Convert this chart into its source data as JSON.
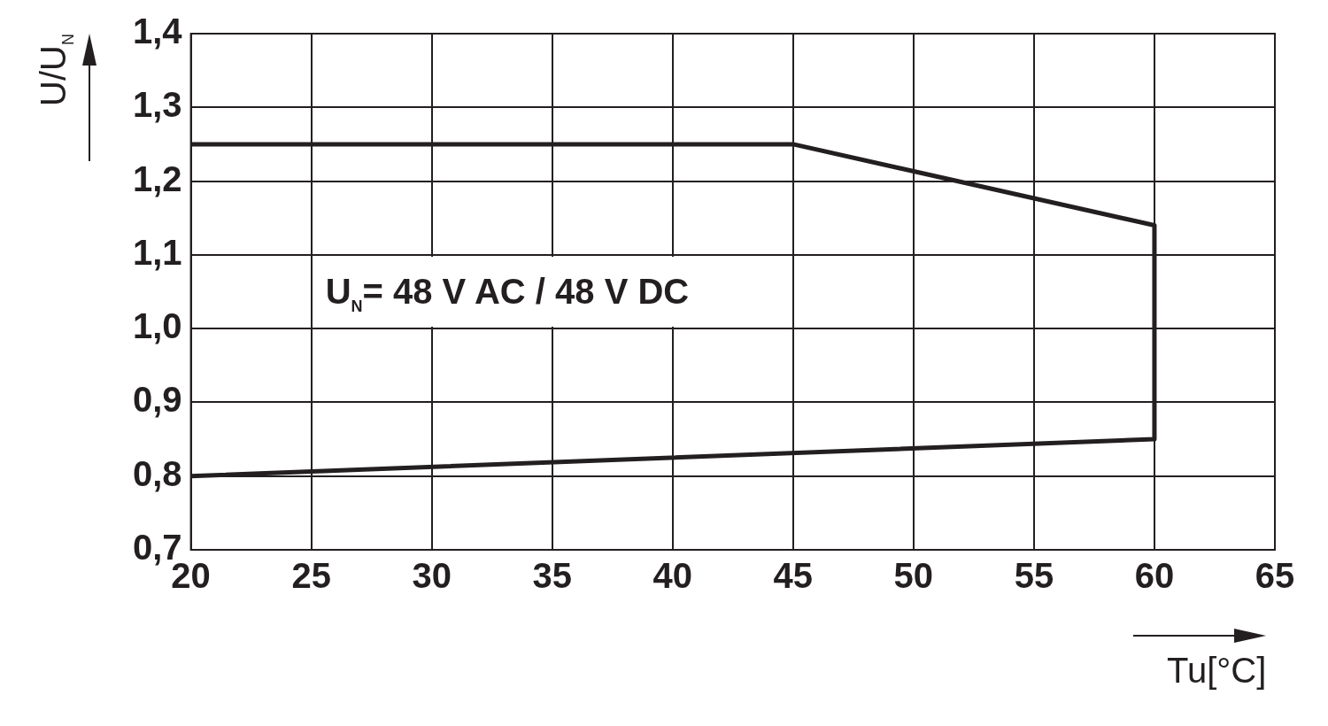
{
  "chart_data": {
    "type": "line",
    "xlabel": "Tu[°C]",
    "ylabel": "U/U$_{N}$",
    "annotations": [
      "U$_{N}$= 48 V AC / 48 V DC"
    ],
    "series": [
      {
        "color": "#231f20",
        "x": [
          20,
          45,
          60,
          60,
          20
        ],
        "values": [
          1.25,
          1.25,
          1.14,
          0.85,
          0.8
        ]
      }
    ],
    "xlim": [
      20,
      65
    ],
    "xticks": [
      20,
      25,
      30,
      35,
      40,
      45,
      50,
      55,
      60,
      65
    ],
    "ylim": [
      0.7,
      1.4
    ],
    "yticks": [
      {
        "value": 0.7,
        "label": "0,7"
      },
      {
        "value": 0.8,
        "label": "0,8"
      },
      {
        "value": 0.9,
        "label": "0,9"
      },
      {
        "value": 1.0,
        "label": "1,0"
      },
      {
        "value": 1.1,
        "label": "1,1"
      },
      {
        "value": 1.2,
        "label": "1,2"
      },
      {
        "value": 1.3,
        "label": "1,3"
      },
      {
        "value": 1.4,
        "label": "1,4"
      }
    ],
    "grid": true,
    "legend": false,
    "marker": "none",
    "line_style": "solid"
  }
}
